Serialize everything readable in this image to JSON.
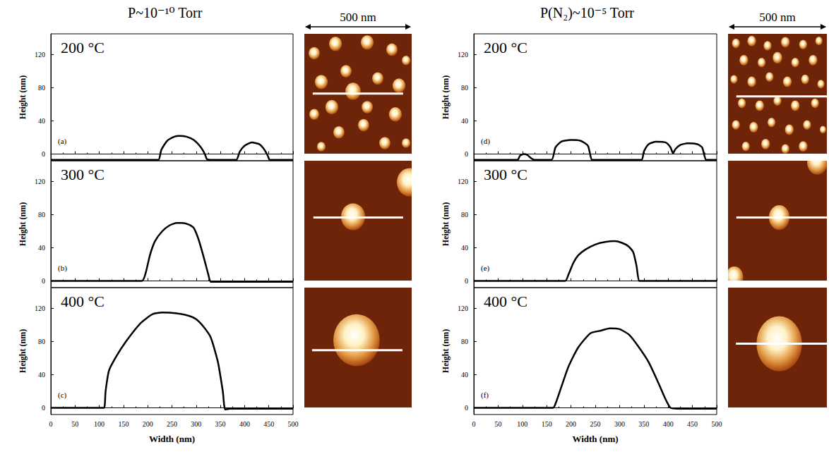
{
  "chart_data": [
    {
      "type": "line",
      "title": "P~10⁻¹⁰ Torr",
      "panel": "(a)",
      "annotation": "200 °C",
      "ylabel": "Height (nm)",
      "x": [
        0,
        100,
        200,
        222,
        228,
        240,
        255,
        265,
        280,
        295,
        310,
        318,
        322,
        330,
        370,
        383,
        390,
        400,
        415,
        430,
        440,
        447,
        452,
        460,
        500
      ],
      "values": [
        -7,
        -7,
        -7,
        -7,
        5,
        16,
        21,
        22,
        21,
        17,
        8,
        0,
        -6,
        -7,
        -7,
        -7,
        3,
        10,
        14,
        12,
        6,
        -1,
        -7,
        -7,
        -7
      ],
      "color": "#000000",
      "line_style": "solid",
      "grid": false,
      "tick_labels": "y",
      "xlim": [
        0,
        500
      ],
      "xticks": [
        0,
        50,
        100,
        150,
        200,
        250,
        300,
        350,
        400,
        450,
        500
      ],
      "ylim": [
        -8,
        145
      ],
      "yticks": [
        0,
        40,
        80,
        120
      ],
      "image": {
        "scale_bar": "500 nm",
        "extent": [
          500,
          500
        ],
        "particles": [
          [
            46,
            81,
            26
          ],
          [
            145,
            42,
            30
          ],
          [
            293,
            36,
            30
          ],
          [
            408,
            66,
            26
          ],
          [
            474,
            111,
            20
          ],
          [
            194,
            156,
            26
          ],
          [
            79,
            201,
            30
          ],
          [
            342,
            186,
            26
          ],
          [
            441,
            216,
            30
          ],
          [
            128,
            306,
            30
          ],
          [
            227,
            240,
            36
          ],
          [
            293,
            306,
            26
          ],
          [
            46,
            336,
            23
          ],
          [
            161,
            411,
            26
          ],
          [
            276,
            381,
            26
          ],
          [
            424,
            336,
            30
          ],
          [
            375,
            456,
            26
          ],
          [
            79,
            471,
            20
          ],
          [
            474,
            456,
            20
          ]
        ],
        "profile_line": {
          "y": 249,
          "x": [
            39,
            460
          ]
        }
      }
    },
    {
      "type": "line",
      "panel": "(b)",
      "annotation": "300 °C",
      "ylabel": "Height (nm)",
      "x": [
        0,
        100,
        188,
        195,
        205,
        215,
        230,
        245,
        260,
        270,
        285,
        295,
        305,
        315,
        325,
        330,
        340,
        400,
        500
      ],
      "values": [
        0,
        0,
        0,
        8,
        32,
        48,
        60,
        67,
        70,
        70,
        68,
        64,
        50,
        30,
        8,
        -1,
        -1,
        -1,
        -1
      ],
      "color": "#000000",
      "line_style": "solid",
      "grid": false,
      "tick_labels": "y",
      "xlim": [
        0,
        500
      ],
      "xticks": [
        0,
        50,
        100,
        150,
        200,
        250,
        300,
        350,
        400,
        450,
        500
      ],
      "ylim": [
        -8,
        145
      ],
      "yticks": [
        0,
        40,
        80,
        120
      ],
      "image": {
        "extent": [
          500,
          500
        ],
        "particles": [
          [
            227,
            234,
            56
          ],
          [
            490,
            90,
            59
          ]
        ],
        "profile_line": {
          "y": 237,
          "x": [
            42,
            460
          ]
        }
      }
    },
    {
      "type": "line",
      "panel": "(c)",
      "annotation": "400 °C",
      "ylabel": "Height (nm)",
      "xlabel": "Width (nm)",
      "x": [
        0,
        100,
        110,
        113,
        120,
        135,
        155,
        185,
        210,
        230,
        260,
        285,
        300,
        315,
        330,
        345,
        355,
        360,
        370,
        500
      ],
      "values": [
        0,
        0,
        0,
        20,
        45,
        62,
        80,
        102,
        113,
        115,
        114,
        111,
        107,
        98,
        85,
        55,
        20,
        -2,
        -1,
        -1
      ],
      "color": "#000000",
      "line_style": "solid",
      "grid": false,
      "tick_labels": true,
      "xlim": [
        0,
        500
      ],
      "xticks": [
        0,
        50,
        100,
        150,
        200,
        250,
        300,
        350,
        400,
        450,
        500
      ],
      "ylim": [
        -8,
        145
      ],
      "yticks": [
        0,
        40,
        80,
        120
      ],
      "image": {
        "extent": [
          500,
          500
        ],
        "particles": [
          [
            243,
            219,
            108
          ]
        ],
        "profile_line": {
          "y": 261,
          "x": [
            36,
            457
          ]
        }
      }
    },
    {
      "type": "line",
      "title": "P(N₂)~10⁻⁵ Torr",
      "panel": "(d)",
      "annotation": "200 °C",
      "ylabel": "Height (nm)",
      "x": [
        0,
        90,
        95,
        103,
        110,
        118,
        125,
        160,
        168,
        180,
        200,
        220,
        235,
        243,
        250,
        345,
        350,
        360,
        375,
        395,
        405,
        410,
        415,
        425,
        440,
        460,
        470,
        478,
        485,
        500
      ],
      "values": [
        -7,
        -7,
        -2,
        0,
        -1,
        -5,
        -7,
        -7,
        8,
        15,
        17,
        16,
        10,
        -7,
        -7,
        -7,
        3,
        12,
        15,
        14,
        8,
        1,
        6,
        11,
        13,
        12,
        8,
        -7,
        -7,
        -7
      ],
      "color": "#000000",
      "line_style": "solid",
      "grid": false,
      "tick_labels": "y",
      "xlim": [
        0,
        500
      ],
      "xticks": [
        0,
        50,
        100,
        150,
        200,
        250,
        300,
        350,
        400,
        450,
        500
      ],
      "ylim": [
        -8,
        145
      ],
      "yticks": [
        0,
        40,
        80,
        120
      ],
      "image": {
        "scale_bar": "500 nm",
        "extent": [
          500,
          500
        ],
        "particles": [
          [
            40,
            40,
            20
          ],
          [
            120,
            30,
            22
          ],
          [
            200,
            50,
            20
          ],
          [
            290,
            35,
            22
          ],
          [
            380,
            45,
            20
          ],
          [
            460,
            30,
            18
          ],
          [
            80,
            110,
            22
          ],
          [
            170,
            120,
            20
          ],
          [
            250,
            100,
            24
          ],
          [
            340,
            120,
            20
          ],
          [
            430,
            110,
            22
          ],
          [
            30,
            190,
            18
          ],
          [
            120,
            200,
            22
          ],
          [
            210,
            180,
            20
          ],
          [
            300,
            200,
            22
          ],
          [
            390,
            190,
            20
          ],
          [
            470,
            210,
            18
          ],
          [
            70,
            290,
            20
          ],
          [
            160,
            300,
            22
          ],
          [
            250,
            280,
            20
          ],
          [
            340,
            300,
            22
          ],
          [
            440,
            290,
            20
          ],
          [
            40,
            380,
            20
          ],
          [
            130,
            390,
            22
          ],
          [
            220,
            370,
            20
          ],
          [
            310,
            400,
            22
          ],
          [
            400,
            380,
            20
          ],
          [
            480,
            400,
            16
          ],
          [
            90,
            470,
            20
          ],
          [
            190,
            460,
            22
          ],
          [
            290,
            480,
            20
          ],
          [
            380,
            470,
            22
          ]
        ],
        "profile_line": {
          "y": 261,
          "x": [
            42,
            500
          ]
        }
      }
    },
    {
      "type": "line",
      "panel": "(e)",
      "annotation": "300 °C",
      "ylabel": "Height (nm)",
      "x": [
        0,
        100,
        188,
        195,
        205,
        215,
        230,
        250,
        270,
        290,
        305,
        318,
        328,
        335,
        340,
        345,
        400,
        500
      ],
      "values": [
        0,
        0,
        0,
        8,
        22,
        31,
        38,
        44,
        47,
        48,
        46,
        42,
        35,
        18,
        0,
        0,
        0,
        0
      ],
      "color": "#000000",
      "line_style": "solid",
      "grid": false,
      "tick_labels": "y",
      "xlim": [
        0,
        500
      ],
      "xticks": [
        0,
        50,
        100,
        150,
        200,
        250,
        300,
        350,
        400,
        450,
        500
      ],
      "ylim": [
        -8,
        145
      ],
      "yticks": [
        0,
        40,
        80,
        120
      ],
      "image": {
        "extent": [
          500,
          500
        ],
        "particles": [
          [
            259,
            237,
            52
          ],
          [
            452,
            6,
            52
          ],
          [
            32,
            486,
            45
          ]
        ],
        "profile_line": {
          "y": 237,
          "x": [
            42,
            500
          ]
        }
      }
    },
    {
      "type": "line",
      "panel": "(f)",
      "annotation": "400 °C",
      "ylabel": "Height (nm)",
      "xlabel": "Width (nm)",
      "x": [
        0,
        100,
        163,
        170,
        180,
        195,
        215,
        240,
        260,
        280,
        300,
        320,
        340,
        360,
        380,
        395,
        405,
        420,
        500
      ],
      "values": [
        0,
        0,
        0,
        8,
        25,
        50,
        73,
        90,
        93,
        96,
        95,
        88,
        73,
        55,
        30,
        10,
        0,
        -1,
        -1
      ],
      "color": "#000000",
      "line_style": "solid",
      "grid": false,
      "tick_labels": true,
      "xlim": [
        0,
        500
      ],
      "xticks": [
        0,
        50,
        100,
        150,
        200,
        250,
        300,
        350,
        400,
        450,
        500
      ],
      "ylim": [
        -8,
        145
      ],
      "yticks": [
        0,
        40,
        80,
        120
      ],
      "image": {
        "extent": [
          500,
          500
        ],
        "particles": [
          [
            259,
            234,
            115
          ]
        ],
        "profile_line": {
          "y": 234,
          "x": [
            40,
            500
          ]
        }
      }
    }
  ]
}
